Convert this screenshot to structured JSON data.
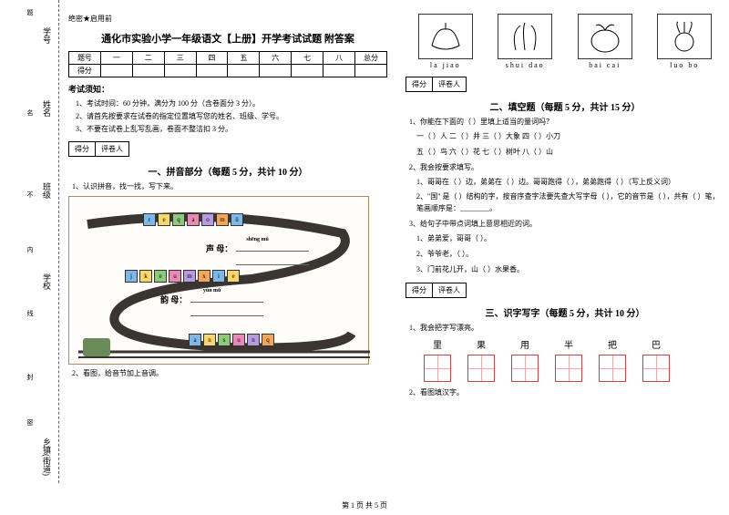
{
  "sidebar": {
    "items": [
      "学号",
      "姓名",
      "班级",
      "学校",
      "乡镇(街道)"
    ],
    "marks": [
      "题",
      "名",
      "不",
      "内",
      "线",
      "封",
      "密"
    ]
  },
  "secret": "绝密★启用前",
  "title": "通化市实验小学一年级语文【上册】开学考试试题 附答案",
  "scoreTable": {
    "headers": [
      "题号",
      "一",
      "二",
      "三",
      "四",
      "五",
      "六",
      "七",
      "八",
      "总分"
    ],
    "row2": "得分"
  },
  "rulesTitle": "考试须知：",
  "rules": [
    "1、考试时间：60 分钟，满分为 100 分（含卷面分 3 分）。",
    "2、请首先按要求在试卷的指定位置填写您的姓名、班级、学号。",
    "3、不要在试卷上乱写乱画，卷面不整洁扣 3 分。"
  ],
  "scoreBox": {
    "c1": "得分",
    "c2": "评卷人"
  },
  "section1": {
    "title": "一、拼音部分（每题 5 分，共计 10 分）",
    "q1": "1、认识拼音，找一找，写下来。",
    "q2": "2、看图，给音节加上音调。",
    "shengmu": "声 母：",
    "shengmu_py": "shēng mǔ",
    "yunmu": "韵 母：",
    "yunmu_py": "yùn mǔ",
    "blocks_top": [
      "r",
      "e",
      "q",
      "a",
      "o",
      "m",
      "ü"
    ],
    "blocks_mid": [
      "j",
      "k",
      "e",
      "u",
      "m",
      "x",
      "i",
      "e"
    ],
    "blocks_bot": [
      "a",
      "n",
      "s",
      "u",
      "n",
      "q"
    ],
    "block_colors": [
      "#7db8e8",
      "#f5d76e",
      "#8fc97a",
      "#e88ab5",
      "#b89ae0",
      "#f2a65a",
      "#7db8e8",
      "#f5d76e"
    ]
  },
  "veg": [
    {
      "py": "la    jiao",
      "name": "pepper"
    },
    {
      "py": "shui  dao",
      "name": "rice"
    },
    {
      "py": "bai   cai",
      "name": "cabbage"
    },
    {
      "py": "luo   bo",
      "name": "radish"
    }
  ],
  "section2": {
    "title": "二、填空题（每题 5 分，共计 15 分）",
    "q1": "1、你能在下面的（    ）里填上适当的量词吗？",
    "fills1": "一（    ）人    二（    ）井    三（    ）大象    四（    ）小刀",
    "fills2": "五（    ）鸟    六（    ）花    七（    ）树叶    八（    ）山",
    "q2": "2、我会按要求填写。",
    "sub1": "1、哥哥在（    ）边，弟弟在（    ）边。哥哥跑得（    ），弟弟跑得（    ）（写上反义词）",
    "sub2": "2、\"国\" 是（    ）结构的字，按音序查字法要先查大写字母（    ），它的音节是（    ），共有（    ）笔，笔画顺序是：________。",
    "q3": "3、给句子中带点词填上意思相近的词。",
    "s3a": "1、弟弟爱，哥哥（    ）。",
    "s3b": "2、爷爷老，（    ）。",
    "s3c": "3、门前花儿开，山（    ）水果香。"
  },
  "section3": {
    "title": "三、识字写字（每题 5 分，共计 10 分）",
    "q1": "1、我会把字写漂亮。",
    "chars": [
      "里",
      "果",
      "用",
      "半",
      "把",
      "巴"
    ],
    "q2": "2、看图填汉字。"
  },
  "footer": "第 1 页 共 5 页"
}
